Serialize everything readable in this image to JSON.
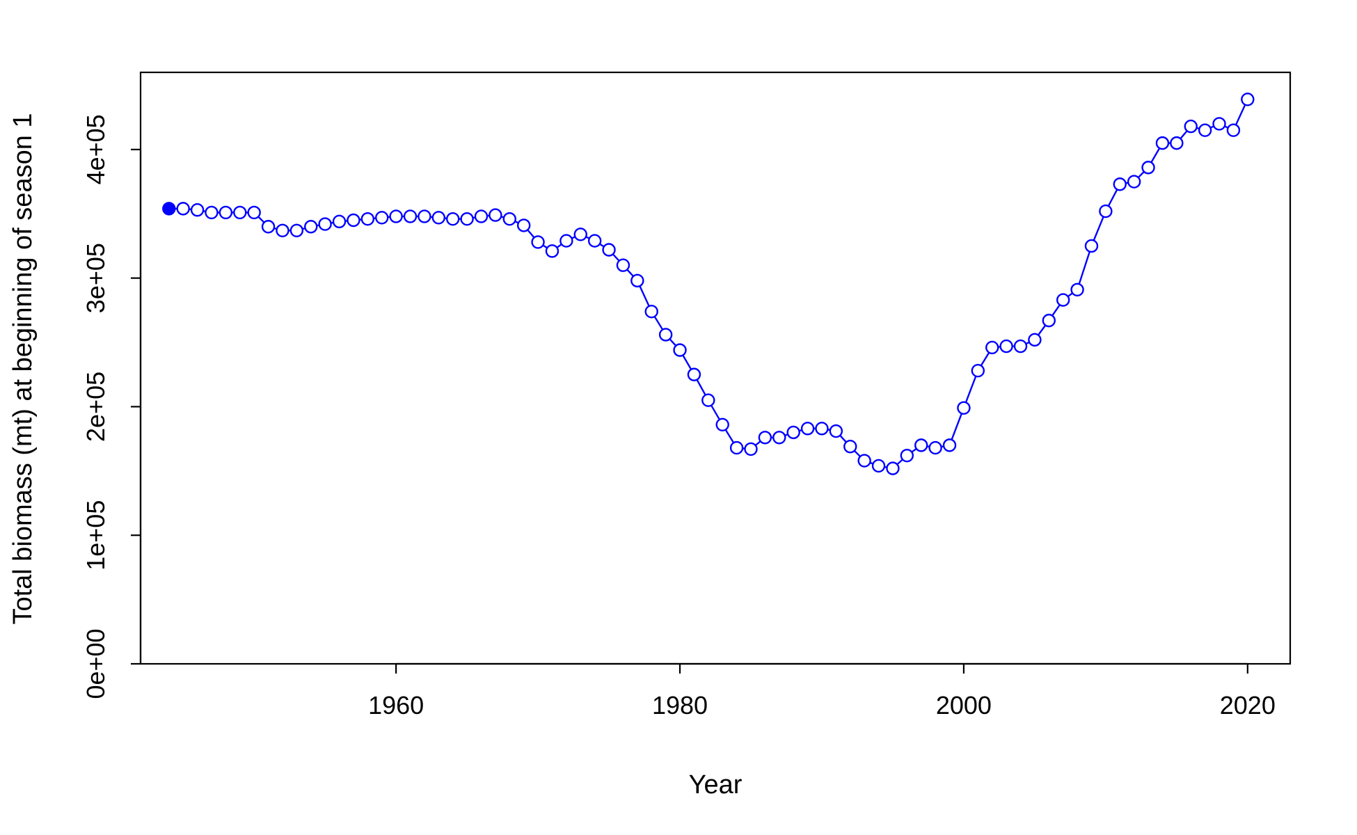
{
  "chart_data": {
    "type": "line",
    "xlabel": "Year",
    "ylabel": "Total biomass (mt) at beginning of season 1",
    "xlim": [
      1942,
      2023
    ],
    "ylim": [
      0,
      460000
    ],
    "x_ticks": [
      1960,
      1980,
      2000,
      2020
    ],
    "x_tick_labels": [
      "1960",
      "1980",
      "2000",
      "2020"
    ],
    "y_ticks": [
      0,
      100000,
      200000,
      300000,
      400000
    ],
    "y_tick_labels": [
      "0e+00",
      "1e+05",
      "2e+05",
      "3e+05",
      "4e+05"
    ],
    "series_color": "#0000FF",
    "first_point_filled": true,
    "series": [
      {
        "x": [
          1944,
          1945,
          1946,
          1947,
          1948,
          1949,
          1950,
          1951,
          1952,
          1953,
          1954,
          1955,
          1956,
          1957,
          1958,
          1959,
          1960,
          1961,
          1962,
          1963,
          1964,
          1965,
          1966,
          1967,
          1968,
          1969,
          1970,
          1971,
          1972,
          1973,
          1974,
          1975,
          1976,
          1977,
          1978,
          1979,
          1980,
          1981,
          1982,
          1983,
          1984,
          1985,
          1986,
          1987,
          1988,
          1989,
          1990,
          1991,
          1992,
          1993,
          1994,
          1995,
          1996,
          1997,
          1998,
          1999,
          2000,
          2001,
          2002,
          2003,
          2004,
          2005,
          2006,
          2007,
          2008,
          2009,
          2010,
          2011,
          2012,
          2013,
          2014,
          2015,
          2016,
          2017,
          2018,
          2019,
          2020
        ],
        "values": [
          354000,
          354000,
          353000,
          351000,
          351000,
          351000,
          351000,
          340000,
          337000,
          337000,
          340000,
          342000,
          344000,
          345000,
          346000,
          347000,
          348000,
          348000,
          348000,
          347000,
          346000,
          346000,
          348000,
          349000,
          346000,
          341000,
          328000,
          321000,
          329000,
          334000,
          329000,
          322000,
          310000,
          298000,
          274000,
          256000,
          244000,
          225000,
          205000,
          186000,
          168000,
          167000,
          176000,
          176000,
          180000,
          183000,
          183000,
          181000,
          169000,
          158000,
          154000,
          152000,
          162000,
          170000,
          168000,
          170000,
          199000,
          228000,
          246000,
          247000,
          247000,
          252000,
          267000,
          283000,
          291000,
          325000,
          352000,
          373000,
          375000,
          386000,
          405000,
          405000,
          418000,
          415000,
          420000,
          415000,
          439000
        ]
      }
    ]
  }
}
